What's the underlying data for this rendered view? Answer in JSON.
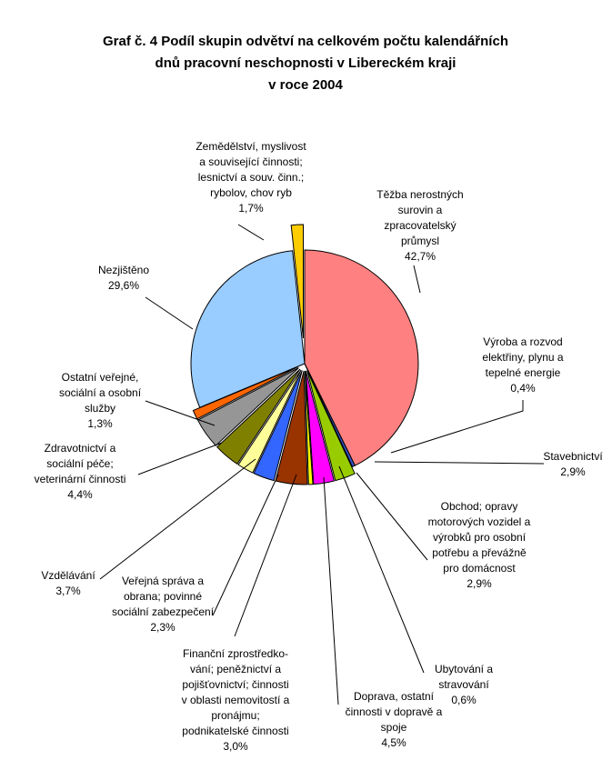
{
  "chart_data": {
    "type": "pie",
    "title": [
      "Graf č. 4 Podíl skupin odvětví na celkovém počtu kalendářních",
      "dnů pracovní neschopnosti v Libereckém kraji",
      "v roce 2004"
    ],
    "slices": [
      {
        "label": [
          "Těžba nerostných",
          "surovin a",
          "zpracovatelský",
          "průmysl"
        ],
        "value_text": "42,7%",
        "value": 42.7,
        "color": "#ff8080"
      },
      {
        "label": [
          "Výroba a rozvod",
          "elektřiny, plynu a",
          "tepelné energie"
        ],
        "value_text": "0,4%",
        "value": 0.4,
        "color": "#3355cc"
      },
      {
        "label": [
          "Stavebnictví"
        ],
        "value_text": "2,9%",
        "value": 2.9,
        "color": "#99cc00"
      },
      {
        "label": [
          "Obchod; opravy",
          "motorových vozidel a",
          "výrobků pro osobní",
          "potřebu a převážně",
          "pro domácnost"
        ],
        "value_text": "2,9%",
        "value": 2.9,
        "color": "#ff00ff"
      },
      {
        "label": [
          "Ubytování a",
          "stravování"
        ],
        "value_text": "0,6%",
        "value": 0.6,
        "color": "#ffff00"
      },
      {
        "label": [
          "Doprava, ostatní",
          "činnosti v dopravě a",
          "spoje"
        ],
        "value_text": "4,5%",
        "value": 4.5,
        "color": "#993300"
      },
      {
        "label": [
          "Finanční zprostředko-",
          "vání; peněžnictví a",
          "pojišťovnictví; činnosti",
          "v oblasti nemovitostí a",
          "pronájmu;",
          "podnikatelské činnosti"
        ],
        "value_text": "3,0%",
        "value": 3.0,
        "color": "#3366ff"
      },
      {
        "label": [
          "Veřejná správa a",
          "obrana; povinné",
          "sociální zabezpečení"
        ],
        "value_text": "2,3%",
        "value": 2.3,
        "color": "#ffff99"
      },
      {
        "label": [
          "Vzdělávání"
        ],
        "value_text": "3,7%",
        "value": 3.7,
        "color": "#808000"
      },
      {
        "label": [
          "Zdravotnictví a",
          "sociální péče;",
          "veterinární činnosti"
        ],
        "value_text": "4,4%",
        "value": 4.4,
        "color": "#969696"
      },
      {
        "label": [
          "Ostatní veřejné,",
          "sociální a osobní",
          "služby"
        ],
        "value_text": "1,3%",
        "value": 1.3,
        "color": "#ff6600"
      },
      {
        "label": [
          "Nezjištěno"
        ],
        "value_text": "29,6%",
        "value": 29.6,
        "color": "#99ccff"
      },
      {
        "label": [
          "Zemědělství, myslivost",
          "a související činnosti;",
          "lesnictví a souv. činn.;",
          "rybolov, chov ryb"
        ],
        "value_text": "1,7%",
        "value": 1.7,
        "color": "#ffcc00"
      }
    ]
  }
}
